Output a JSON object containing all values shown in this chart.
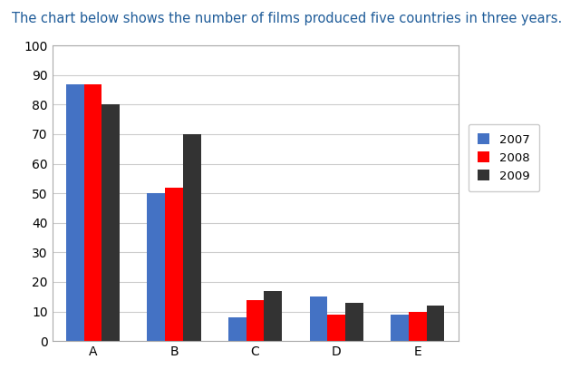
{
  "title": "The chart below shows the number of films produced five countries in three years.",
  "categories": [
    "A",
    "B",
    "C",
    "D",
    "E"
  ],
  "series": [
    {
      "label": "2007",
      "color": "#4472C4",
      "values": [
        87,
        50,
        8,
        15,
        9
      ]
    },
    {
      "label": "2008",
      "color": "#FF0000",
      "values": [
        87,
        52,
        14,
        9,
        10
      ]
    },
    {
      "label": "2009",
      "color": "#333333",
      "values": [
        80,
        70,
        17,
        13,
        12
      ]
    }
  ],
  "ylim": [
    0,
    100
  ],
  "yticks": [
    0,
    10,
    20,
    30,
    40,
    50,
    60,
    70,
    80,
    90,
    100
  ],
  "title_color": "#1F5C99",
  "title_fontsize": 10.5,
  "background_color": "#FFFFFF",
  "plot_bg_color": "#FFFFFF",
  "grid_color": "#CCCCCC",
  "bar_width": 0.22,
  "spine_color": "#AAAAAA"
}
